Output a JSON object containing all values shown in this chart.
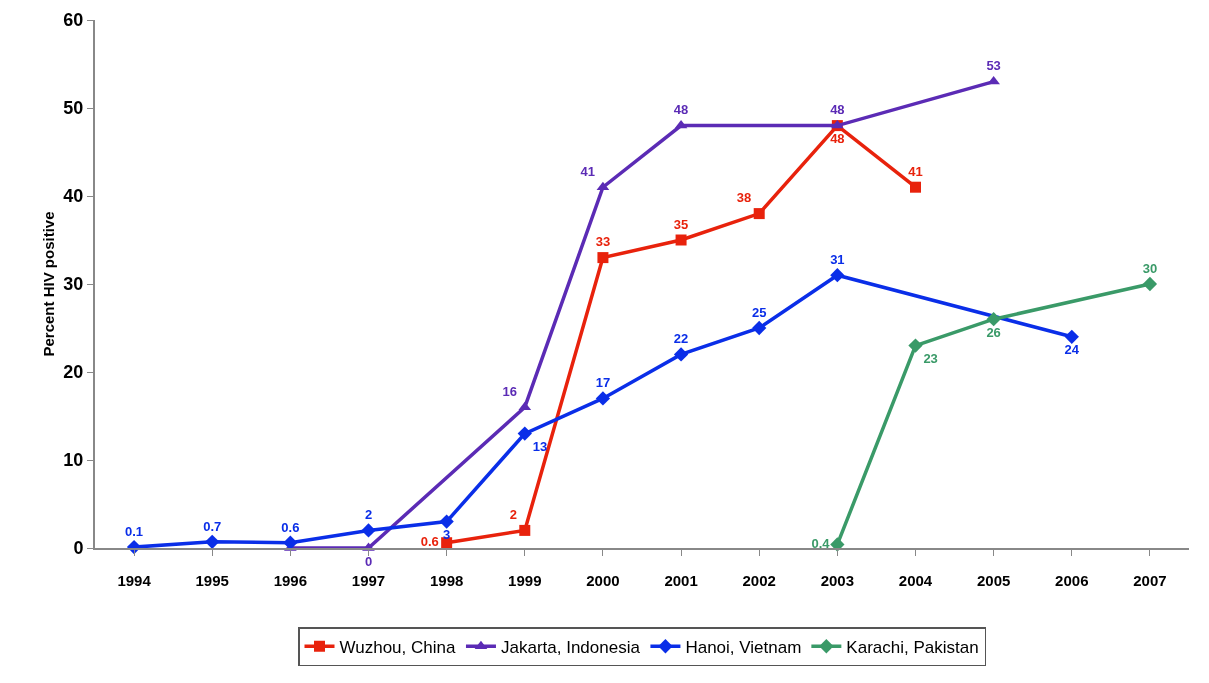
{
  "chart_data": {
    "type": "line",
    "ylabel": "Percent HIV positive",
    "categories": [
      "1994",
      "1995",
      "1996",
      "1997",
      "1998",
      "1999",
      "2000",
      "2001",
      "2002",
      "2003",
      "2004",
      "2005",
      "2006",
      "2007"
    ],
    "ylim": [
      0,
      60
    ],
    "yticks": [
      0,
      10,
      20,
      30,
      40,
      50,
      60
    ],
    "grid": false,
    "legend": "bottom",
    "line_style": "solid",
    "series": [
      {
        "name": "Wuzhou, China",
        "color": "#e8220c",
        "marker": "square",
        "values": [
          null,
          null,
          null,
          null,
          0.6,
          2,
          33,
          35,
          38,
          48,
          41,
          null,
          null,
          null
        ],
        "value_labels": [
          null,
          null,
          null,
          null,
          "0.6",
          "2",
          "33",
          "35",
          "38",
          "48",
          "41",
          null,
          null,
          null
        ]
      },
      {
        "name": "Jakarta, Indonesia",
        "color": "#5b2bb5",
        "marker": "triangle",
        "values": [
          null,
          null,
          0,
          0,
          null,
          16,
          41,
          48,
          null,
          48,
          null,
          53,
          null,
          null
        ],
        "value_labels": [
          null,
          null,
          null,
          "0",
          null,
          "16",
          "41",
          "48",
          null,
          "48",
          null,
          "53",
          null,
          null
        ]
      },
      {
        "name": "Hanoi, Vietnam",
        "color": "#0a2ee8",
        "marker": "diamond",
        "values": [
          0.1,
          0.7,
          0.6,
          2,
          3,
          13,
          17,
          22,
          25,
          31,
          null,
          null,
          24,
          null
        ],
        "value_labels": [
          "0.1",
          "0.7",
          "0.6",
          "2",
          "3",
          "13",
          "17",
          "22",
          "25",
          "31",
          null,
          null,
          "24",
          null
        ]
      },
      {
        "name": "Karachi, Pakistan",
        "color": "#3a9a68",
        "marker": "diamond",
        "values": [
          null,
          null,
          null,
          null,
          null,
          null,
          null,
          null,
          null,
          0.4,
          23,
          26,
          null,
          30
        ],
        "value_labels": [
          null,
          null,
          null,
          null,
          null,
          null,
          null,
          null,
          null,
          "0.4",
          "23",
          "26",
          null,
          "30"
        ]
      }
    ]
  }
}
